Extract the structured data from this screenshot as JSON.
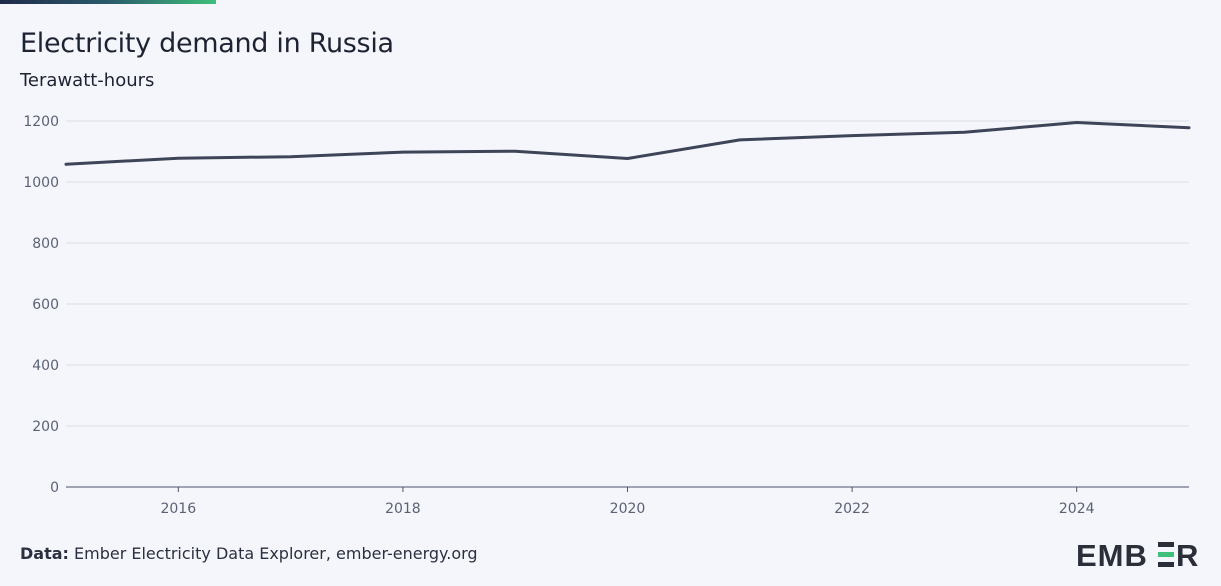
{
  "header": {
    "title": "Electricity demand in Russia",
    "subtitle": "Terawatt-hours"
  },
  "footer": {
    "source_label": "Data:",
    "source_text": "Ember Electricity Data Explorer, ember-energy.org",
    "logo_text": "EMBER"
  },
  "colors": {
    "line": "#3e4559",
    "grid": "#dcdfe8",
    "axis": "#4b5268",
    "tick_text": "#5b6275",
    "accent_green": "#3fbf7a"
  },
  "chart_data": {
    "type": "line",
    "title": "Electricity demand in Russia",
    "ylabel": "Terawatt-hours",
    "xlim": [
      2015,
      2025
    ],
    "ylim": [
      0,
      1200
    ],
    "yticks": [
      0,
      200,
      400,
      600,
      800,
      1000,
      1200
    ],
    "xticks": [
      2016,
      2018,
      2020,
      2022,
      2024
    ],
    "grid": true,
    "series": [
      {
        "x": [
          2015,
          2016,
          2017,
          2018,
          2019,
          2020,
          2021,
          2022,
          2023,
          2024,
          2025
        ],
        "values": [
          1058,
          1078,
          1083,
          1098,
          1101,
          1077,
          1138,
          1152,
          1163,
          1195,
          1178
        ]
      }
    ]
  }
}
